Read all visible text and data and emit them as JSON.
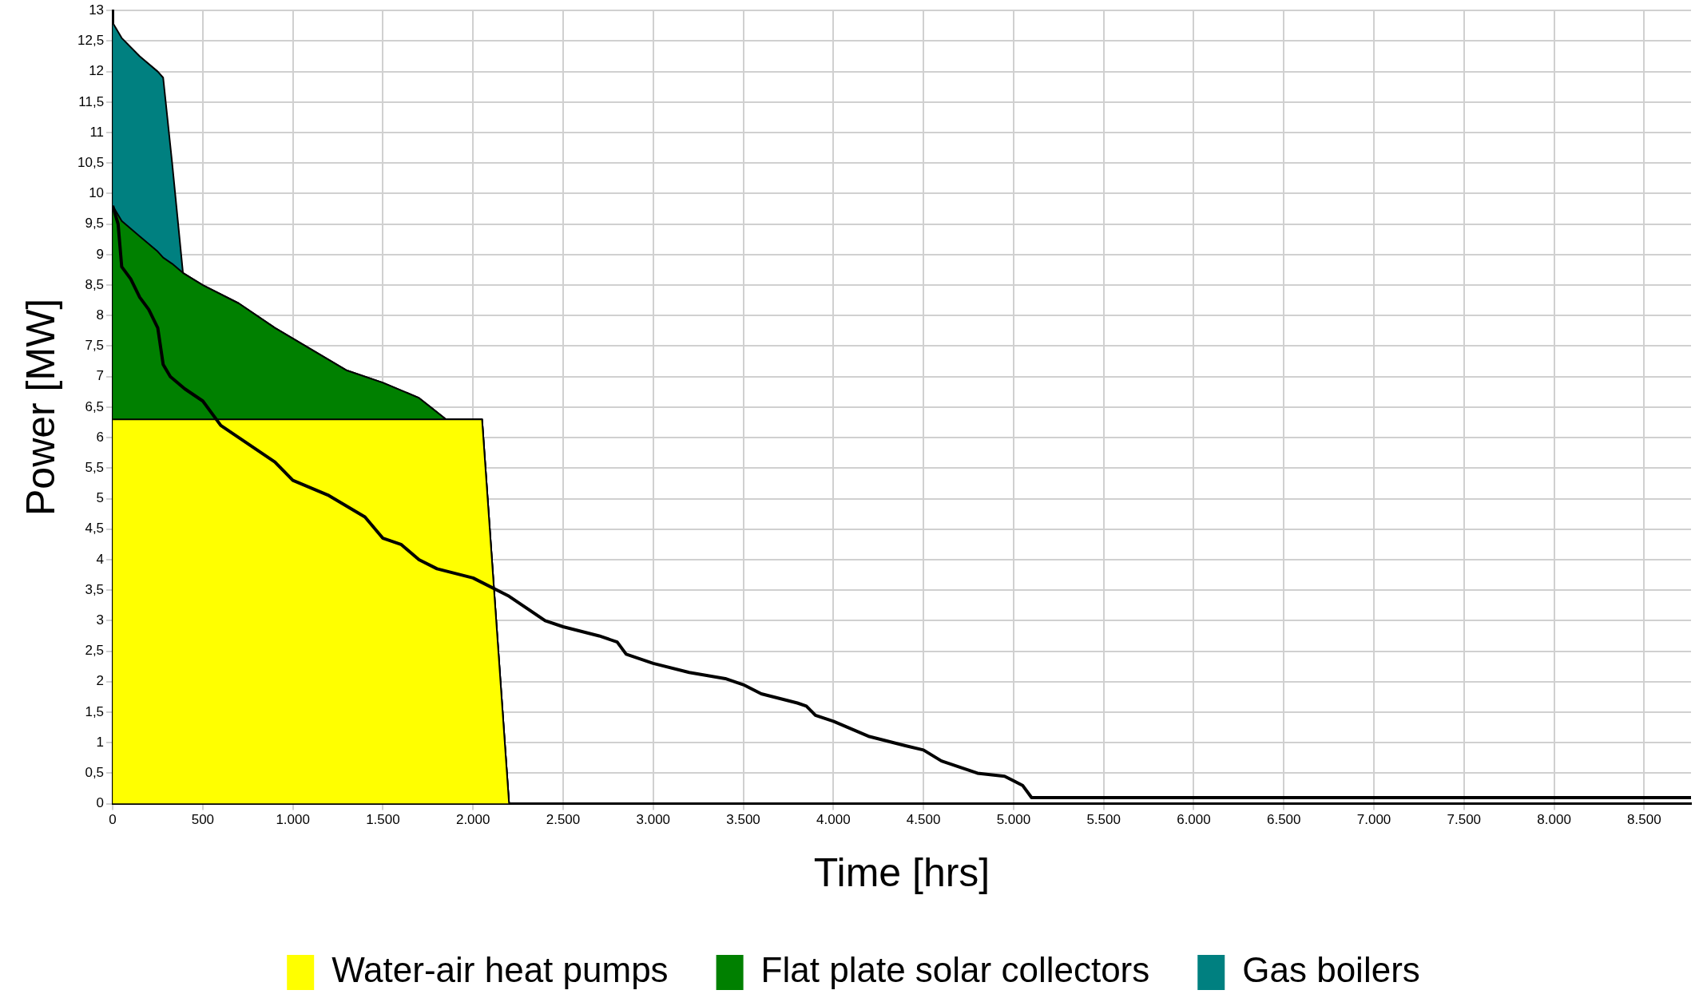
{
  "chart_data": {
    "type": "area",
    "xlabel": "Time [hrs]",
    "ylabel": "Power [MW]",
    "stacked": true,
    "grid": true,
    "legend": "bottom",
    "marker": "none",
    "xlim": [
      0,
      8760
    ],
    "ylim": [
      0,
      13
    ],
    "xticks": [
      0,
      500,
      {
        "value": 1000,
        "label": "1.000"
      },
      {
        "value": 1500,
        "label": "1.500"
      },
      {
        "value": 2000,
        "label": "2.000"
      },
      {
        "value": 2500,
        "label": "2.500"
      },
      {
        "value": 3000,
        "label": "3.000"
      },
      {
        "value": 3500,
        "label": "3.500"
      },
      {
        "value": 4000,
        "label": "4.000"
      },
      {
        "value": 4500,
        "label": "4.500"
      },
      {
        "value": 5000,
        "label": "5.000"
      },
      {
        "value": 5500,
        "label": "5.500"
      },
      {
        "value": 6000,
        "label": "6.000"
      },
      {
        "value": 6500,
        "label": "6.500"
      },
      {
        "value": 7000,
        "label": "7.000"
      },
      {
        "value": 7500,
        "label": "7.500"
      },
      {
        "value": 8000,
        "label": "8.000"
      },
      {
        "value": 8500,
        "label": "8.500"
      }
    ],
    "yticks": [
      0,
      {
        "value": 0.5,
        "label": "0,5"
      },
      1,
      {
        "value": 1.5,
        "label": "1,5"
      },
      2,
      {
        "value": 2.5,
        "label": "2,5"
      },
      3,
      {
        "value": 3.5,
        "label": "3,5"
      },
      4,
      {
        "value": 4.5,
        "label": "4,5"
      },
      5,
      {
        "value": 5.5,
        "label": "5,5"
      },
      6,
      {
        "value": 6.5,
        "label": "6,5"
      },
      7,
      {
        "value": 7.5,
        "label": "7,5"
      },
      8,
      {
        "value": 8.5,
        "label": "8,5"
      },
      9,
      {
        "value": 9.5,
        "label": "9,5"
      },
      10,
      {
        "value": 10.5,
        "label": "10,5"
      },
      11,
      {
        "value": 11.5,
        "label": "11,5"
      },
      12,
      {
        "value": 12.5,
        "label": "12,5"
      },
      13
    ],
    "x": [
      0,
      50,
      150,
      250,
      280,
      330,
      390,
      500,
      700,
      900,
      1100,
      1300,
      1500,
      1700,
      1850,
      2050,
      2200,
      8760
    ],
    "series": [
      {
        "name": "Water-air heat pumps",
        "color": "#ffff00",
        "values": [
          6.3,
          6.3,
          6.3,
          6.3,
          6.3,
          6.3,
          6.3,
          6.3,
          6.3,
          6.3,
          6.3,
          6.3,
          6.3,
          6.3,
          6.3,
          6.3,
          0,
          0
        ]
      },
      {
        "name": "Flat plate solar collectors",
        "color": "#008000",
        "values": [
          3.5,
          3.25,
          3.0,
          2.75,
          2.65,
          2.55,
          2.4,
          2.2,
          1.9,
          1.5,
          1.15,
          0.8,
          0.6,
          0.35,
          0,
          0,
          0,
          0
        ]
      },
      {
        "name": "Gas boilers",
        "color": "#008080",
        "values": [
          3.0,
          3.0,
          2.95,
          2.95,
          2.95,
          1.65,
          0,
          0,
          0,
          0,
          0,
          0,
          0,
          0,
          0,
          0,
          0,
          0
        ]
      },
      {
        "type": "line",
        "color": "#000000",
        "x": [
          0,
          30,
          50,
          100,
          150,
          200,
          250,
          280,
          320,
          400,
          500,
          600,
          700,
          800,
          900,
          1000,
          1200,
          1400,
          1500,
          1600,
          1700,
          1800,
          2000,
          2200,
          2400,
          2500,
          2700,
          2800,
          2850,
          3000,
          3200,
          3400,
          3500,
          3600,
          3800,
          3850,
          3900,
          4000,
          4200,
          4400,
          4500,
          4600,
          4800,
          4950,
          5050,
          5100,
          8760
        ],
        "values": [
          9.8,
          9.5,
          8.8,
          8.6,
          8.3,
          8.1,
          7.8,
          7.2,
          7.0,
          6.8,
          6.6,
          6.2,
          6.0,
          5.8,
          5.6,
          5.3,
          5.05,
          4.7,
          4.35,
          4.25,
          4.0,
          3.85,
          3.7,
          3.4,
          3.0,
          2.9,
          2.75,
          2.65,
          2.45,
          2.3,
          2.15,
          2.05,
          1.95,
          1.8,
          1.65,
          1.6,
          1.45,
          1.35,
          1.1,
          0.95,
          0.88,
          0.7,
          0.5,
          0.45,
          0.3,
          0.1,
          0.1
        ]
      }
    ]
  }
}
